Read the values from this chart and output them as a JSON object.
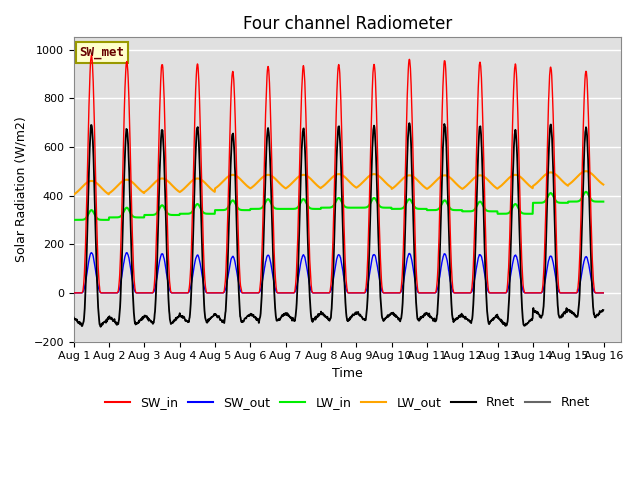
{
  "title": "Four channel Radiometer",
  "xlabel": "Time",
  "ylabel": "Solar Radiation (W/m2)",
  "ylim": [
    -200,
    1050
  ],
  "xlim_days": 15.5,
  "annotation": "SW_met",
  "bg_color": "#e0e0e0",
  "line_colors": {
    "SW_in": "#ff0000",
    "SW_out": "#0000ff",
    "LW_in": "#00ee00",
    "LW_out": "#ffa500",
    "Rnet": "#000000",
    "Rnet2": "#444444"
  },
  "n_days": 15,
  "dt": 0.01,
  "SW_in_peak": [
    975,
    950,
    940,
    940,
    910,
    930,
    930,
    940,
    940,
    960,
    955,
    950,
    940,
    930,
    910
  ],
  "SW_out_peak": [
    165,
    165,
    160,
    155,
    150,
    155,
    155,
    158,
    158,
    162,
    160,
    158,
    155,
    152,
    148
  ],
  "LW_in_base": [
    300,
    310,
    320,
    325,
    340,
    345,
    345,
    350,
    350,
    345,
    340,
    335,
    325,
    370,
    375
  ],
  "LW_out_base": [
    390,
    395,
    400,
    400,
    415,
    415,
    415,
    418,
    418,
    413,
    413,
    413,
    415,
    425,
    430
  ],
  "tick_days": [
    "Aug 1",
    "Aug 2",
    "Aug 3",
    "Aug 4",
    "Aug 5",
    "Aug 6",
    "Aug 7",
    "Aug 8",
    "Aug 9",
    "Aug 10",
    "Aug 11",
    "Aug 12",
    "Aug 13",
    "Aug 14",
    "Aug 15",
    "Aug 16"
  ],
  "title_fontsize": 12,
  "label_fontsize": 9,
  "tick_fontsize": 8,
  "legend_fontsize": 9
}
